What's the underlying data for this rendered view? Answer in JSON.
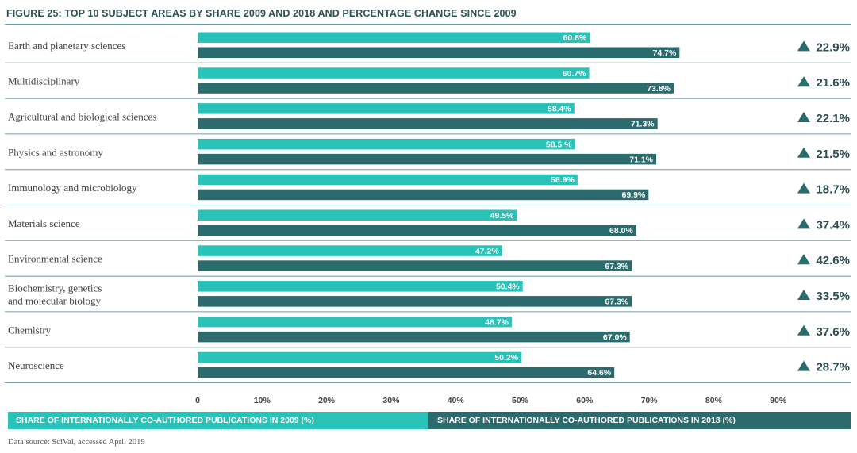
{
  "title": "FIGURE 25: TOP 10 SUBJECT AREAS BY SHARE 2009 AND 2018 AND PERCENTAGE CHANGE SINCE 2009",
  "colors": {
    "series_2009": "#28c2b8",
    "series_2018": "#2b6b6d",
    "change_marker": "#2b6b6d"
  },
  "chart_data": {
    "type": "bar",
    "orientation": "horizontal",
    "categories": [
      "Earth and planetary sciences",
      "Multidisciplinary",
      "Agricultural and biological sciences",
      "Physics and astronomy",
      "Immunology and microbiology",
      "Materials science",
      "Environmental science",
      "Biochemistry, genetics and molecular biology",
      "Chemistry",
      "Neuroscience"
    ],
    "series": [
      {
        "name": "SHARE OF INTERNATIONALLY CO-AUTHORED PUBLICATIONS IN 2009 (%)",
        "values": [
          60.8,
          60.7,
          58.4,
          58.5,
          58.9,
          49.5,
          47.2,
          50.4,
          48.7,
          50.2
        ],
        "labels": [
          "60.8%",
          "60.7%",
          "58.4%",
          "58.5 %",
          "58.9%",
          "49.5%",
          "47.2%",
          "50.4%",
          "48.7%",
          "50.2%"
        ]
      },
      {
        "name": "SHARE OF INTERNATIONALLY CO-AUTHORED PUBLICATIONS IN 2018 (%)",
        "values": [
          74.7,
          73.8,
          71.3,
          71.1,
          69.9,
          68.0,
          67.3,
          67.3,
          67.0,
          64.6
        ],
        "labels": [
          "74.7%",
          "73.8%",
          "71.3%",
          "71.1%",
          "69.9%",
          "68.0%",
          "67.3%",
          "67.3%",
          "67.0%",
          "64.6%"
        ]
      }
    ],
    "percentage_change": [
      "22.9%",
      "21.6%",
      "22.1%",
      "21.5%",
      "18.7%",
      "37.4%",
      "42.6%",
      "33.5%",
      "37.6%",
      "28.7%"
    ],
    "xlim": [
      0,
      100
    ],
    "xticks": [
      0,
      10,
      20,
      30,
      40,
      50,
      60,
      70,
      80,
      90
    ],
    "xtick_labels": [
      "0",
      "10%",
      "20%",
      "30%",
      "40%",
      "50%",
      "60%",
      "70%",
      "80%",
      "90%"
    ],
    "legend_placement": "bottom",
    "grid": false
  },
  "legend": {
    "label_2009": "SHARE OF INTERNATIONALLY CO-AUTHORED PUBLICATIONS IN 2009 (%)",
    "label_2018": "SHARE OF INTERNATIONALLY CO-AUTHORED PUBLICATIONS IN 2018 (%)"
  },
  "source": "Data source: SciVal, accessed April 2019"
}
